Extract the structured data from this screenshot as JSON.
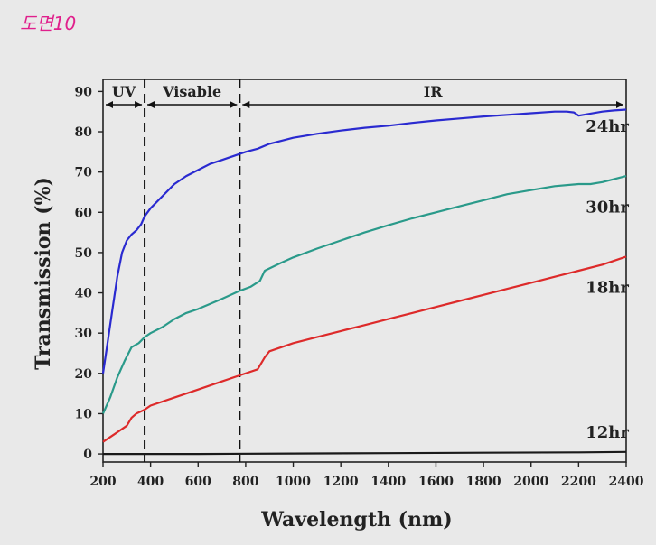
{
  "figure_label": "도면10",
  "chart_data": {
    "type": "line",
    "xlabel": "Wavelength (nm)",
    "ylabel": "Transmission (%)",
    "xlim": [
      200,
      2400
    ],
    "ylim": [
      -2,
      93
    ],
    "x_ticks": [
      200,
      400,
      600,
      800,
      1000,
      1200,
      1400,
      1600,
      1800,
      2000,
      2200,
      2400
    ],
    "y_ticks": [
      0,
      10,
      20,
      30,
      40,
      50,
      60,
      70,
      80,
      90
    ],
    "grid": false,
    "legend": "none",
    "regions": [
      {
        "label": "UV",
        "from": 200,
        "to": 375
      },
      {
        "label": "Visable",
        "from": 375,
        "to": 775
      },
      {
        "label": "IR",
        "from": 775,
        "to": 2400
      }
    ],
    "dividers": [
      375,
      775
    ],
    "series": [
      {
        "name": "24hr",
        "color": "#2a2ad0",
        "x": [
          200,
          220,
          240,
          260,
          280,
          300,
          320,
          340,
          360,
          375,
          400,
          450,
          500,
          550,
          600,
          650,
          700,
          750,
          775,
          800,
          850,
          900,
          1000,
          1100,
          1200,
          1300,
          1400,
          1500,
          1600,
          1700,
          1800,
          1900,
          2000,
          2100,
          2150,
          2180,
          2200,
          2250,
          2300,
          2350,
          2400
        ],
        "y": [
          20,
          28,
          36,
          44,
          50,
          53,
          54.5,
          55.5,
          57,
          59,
          61,
          64,
          67,
          69,
          70.5,
          72,
          73,
          74,
          74.5,
          75,
          75.8,
          77,
          78.5,
          79.5,
          80.3,
          81,
          81.5,
          82.2,
          82.8,
          83.3,
          83.8,
          84.2,
          84.6,
          85,
          85,
          84.8,
          84,
          84.5,
          85,
          85.3,
          85.5
        ]
      },
      {
        "name": "30hr",
        "color": "#2a9a8a",
        "x": [
          200,
          230,
          260,
          290,
          320,
          350,
          375,
          400,
          450,
          500,
          550,
          600,
          700,
          775,
          820,
          860,
          880,
          950,
          1000,
          1100,
          1200,
          1300,
          1400,
          1500,
          1600,
          1700,
          1800,
          1900,
          2000,
          2100,
          2200,
          2250,
          2300,
          2400
        ],
        "y": [
          10,
          14,
          19,
          23,
          26.5,
          27.5,
          29,
          30,
          31.5,
          33.5,
          35,
          36,
          38.5,
          40.5,
          41.5,
          43,
          45.5,
          47.5,
          48.8,
          51,
          53,
          55,
          56.8,
          58.5,
          60,
          61.5,
          63,
          64.5,
          65.5,
          66.5,
          67,
          67,
          67.5,
          69
        ]
      },
      {
        "name": "18hr",
        "color": "#dd2a2a",
        "x": [
          200,
          250,
          300,
          320,
          340,
          375,
          400,
          500,
          600,
          700,
          775,
          850,
          880,
          900,
          950,
          1000,
          1100,
          1200,
          1300,
          1400,
          1500,
          1600,
          1700,
          1800,
          1900,
          2000,
          2100,
          2200,
          2300,
          2400
        ],
        "y": [
          3,
          5,
          7,
          9,
          10,
          11,
          12,
          14,
          16,
          18,
          19.5,
          21,
          24,
          25.5,
          26.5,
          27.5,
          29,
          30.5,
          32,
          33.5,
          35,
          36.5,
          38,
          39.5,
          41,
          42.5,
          44,
          45.5,
          47,
          49
        ]
      },
      {
        "name": "12hr",
        "color": "#1a1a1a",
        "x": [
          200,
          600,
          1000,
          1400,
          1800,
          2200,
          2400
        ],
        "y": [
          0,
          0,
          0.1,
          0.2,
          0.3,
          0.4,
          0.5
        ]
      }
    ],
    "annotations": [
      {
        "text": "24hr",
        "x": 2230,
        "y": 80
      },
      {
        "text": "30hr",
        "x": 2230,
        "y": 60
      },
      {
        "text": "18hr",
        "x": 2230,
        "y": 40
      },
      {
        "text": "12hr",
        "x": 2230,
        "y": 4
      }
    ]
  }
}
